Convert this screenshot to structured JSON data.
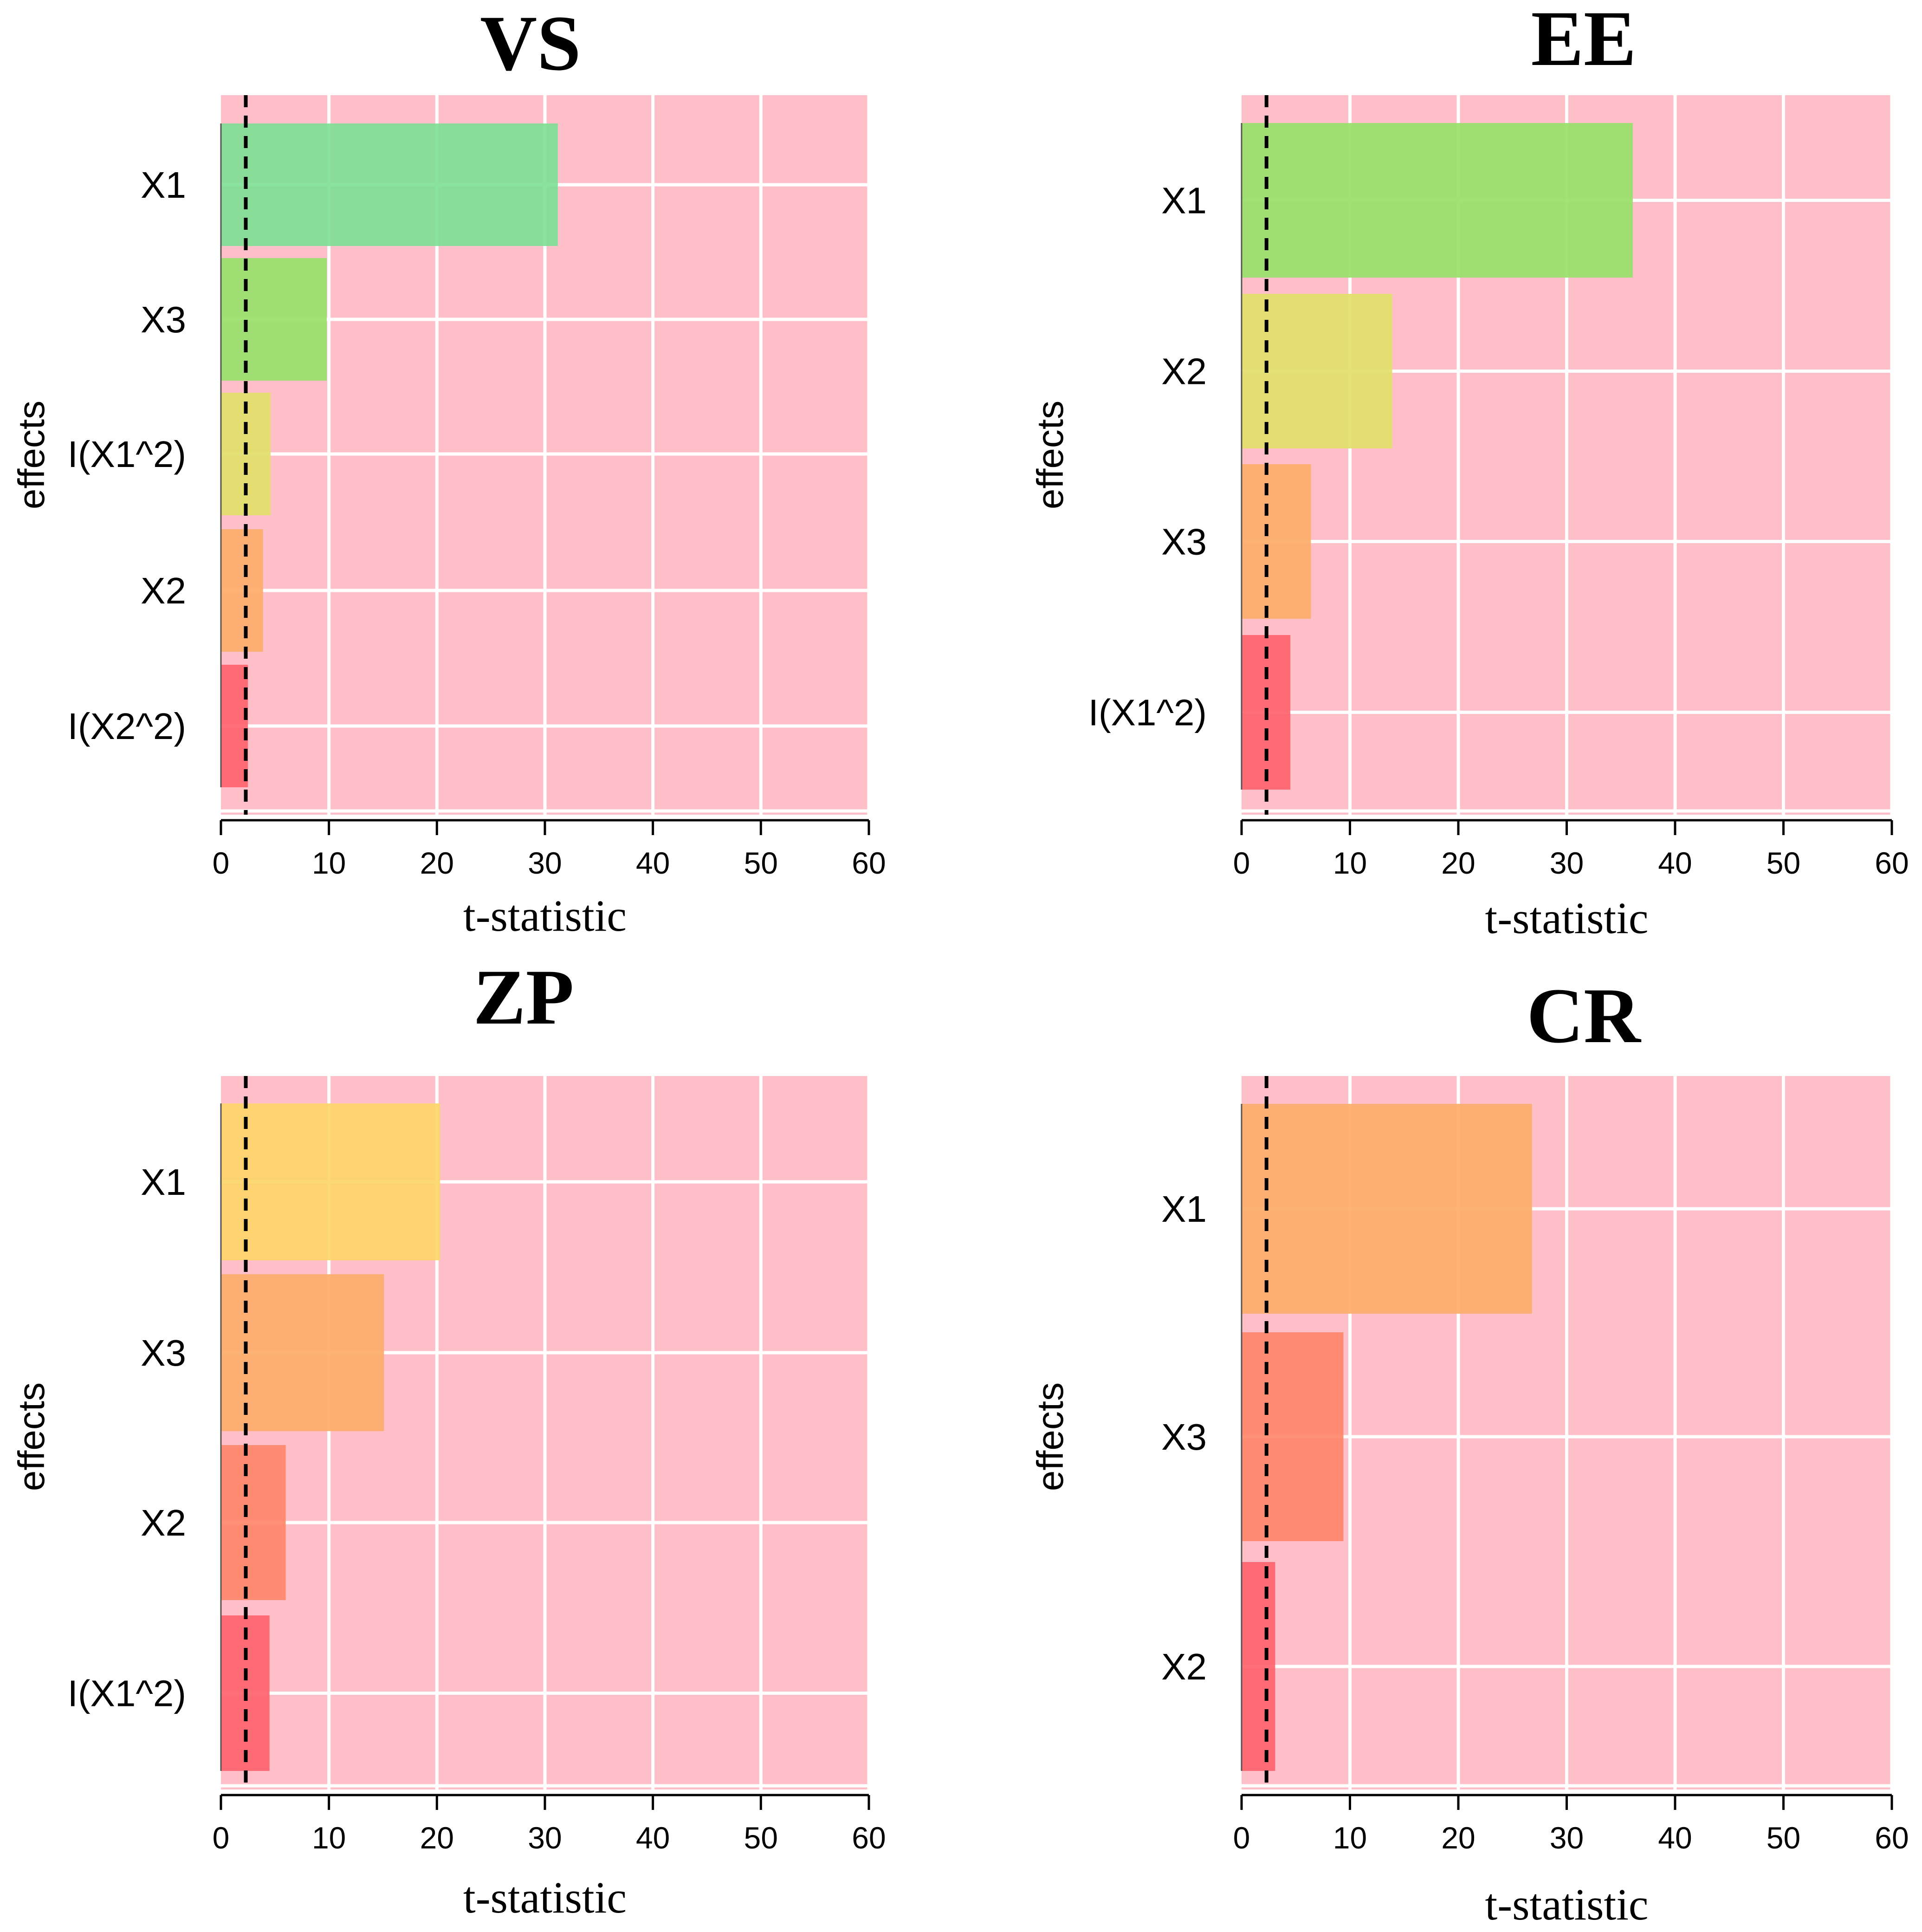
{
  "chart_data": [
    {
      "type": "bar",
      "orientation": "horizontal",
      "title": "VS",
      "xlabel": "t-statistic",
      "ylabel": "effects",
      "xlim": [
        0,
        60
      ],
      "xticks": [
        "0",
        "10",
        "20",
        "30",
        "40",
        "50",
        "60"
      ],
      "categories": [
        "X1",
        "X3",
        "I(X1^2)",
        "X2",
        "I(X2^2)"
      ],
      "values": [
        31.2,
        9.8,
        4.6,
        3.9,
        2.5
      ],
      "colors": [
        "#7fdf95",
        "#98df6a",
        "#e2df6a",
        "#fdac6a",
        "#ff646c"
      ],
      "reference_line": 2.3,
      "grid": true,
      "background": "#ffbfc9"
    },
    {
      "type": "bar",
      "orientation": "horizontal",
      "title": "EE",
      "xlabel": "t-statistic",
      "ylabel": "effects",
      "xlim": [
        0,
        60
      ],
      "xticks": [
        "0",
        "10",
        "20",
        "30",
        "40",
        "50",
        "60"
      ],
      "categories": [
        "X1",
        "X2",
        "X3",
        "I(X1^2)"
      ],
      "values": [
        36.1,
        13.9,
        6.4,
        4.5
      ],
      "colors": [
        "#98df6a",
        "#e2df6a",
        "#fdac6a",
        "#ff646c"
      ],
      "reference_line": 2.3,
      "grid": true,
      "background": "#ffbfc9"
    },
    {
      "type": "bar",
      "orientation": "horizontal",
      "title": "ZP",
      "xlabel": "t-statistic",
      "ylabel": "effects",
      "xlim": [
        0,
        60
      ],
      "xticks": [
        "0",
        "10",
        "20",
        "30",
        "40",
        "50",
        "60"
      ],
      "categories": [
        "X1",
        "X3",
        "X2",
        "I(X1^2)"
      ],
      "values": [
        20.3,
        15.1,
        6.0,
        4.5
      ],
      "colors": [
        "#fdd56a",
        "#fdac6a",
        "#ff886a",
        "#ff646c"
      ],
      "reference_line": 2.3,
      "grid": true,
      "background": "#ffbfc9"
    },
    {
      "type": "bar",
      "orientation": "horizontal",
      "title": "CR",
      "xlabel": "t-statistic",
      "ylabel": "effects",
      "xlim": [
        0,
        60
      ],
      "xticks": [
        "0",
        "10",
        "20",
        "30",
        "40",
        "50",
        "60"
      ],
      "categories": [
        "X1",
        "X3",
        "X2"
      ],
      "values": [
        26.8,
        9.4,
        3.1
      ],
      "colors": [
        "#fdac6a",
        "#ff886a",
        "#ff646c"
      ],
      "reference_line": 2.3,
      "grid": true,
      "background": "#ffbfc9"
    }
  ]
}
